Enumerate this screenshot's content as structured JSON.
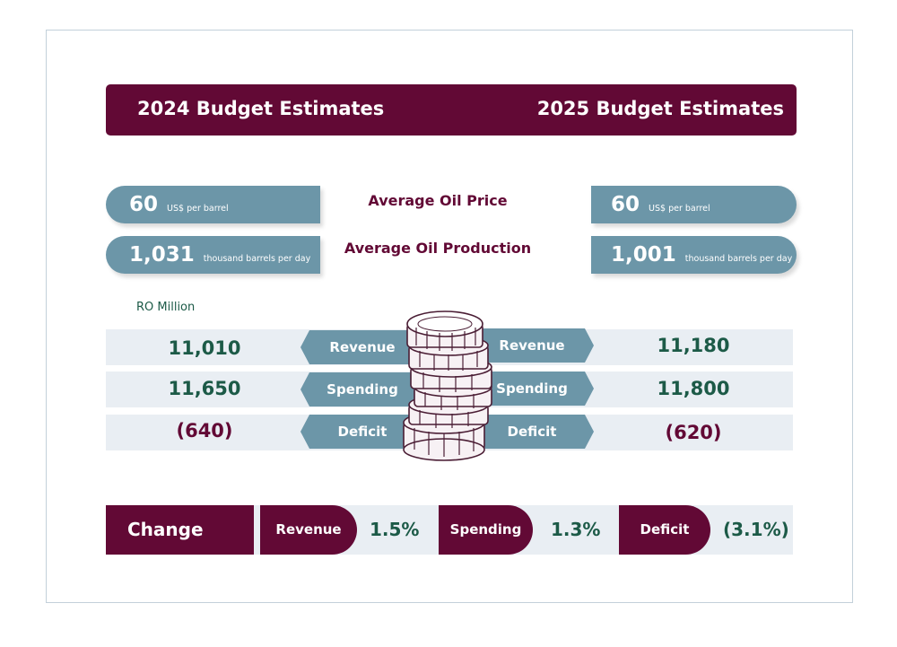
{
  "header": {
    "left_title": "2024 Budget Estimates",
    "right_title": "2025 Budget Estimates"
  },
  "oil": {
    "price_label": "Average Oil Price",
    "production_label": "Average Oil Production",
    "price_2024": "60",
    "price_2025": "60",
    "price_unit": "US$ per barrel",
    "production_2024": "1,031",
    "production_2025": "1,001",
    "production_unit": "thousand barrels per day"
  },
  "units_label": "RO Million",
  "rows": [
    {
      "label": "Revenue",
      "value_2024": "11,010",
      "value_2025": "11,180"
    },
    {
      "label": "Spending",
      "value_2024": "11,650",
      "value_2025": "11,800"
    },
    {
      "label": "Deficit",
      "value_2024": "(640)",
      "value_2025": "(620)"
    }
  ],
  "change": {
    "title": "Change",
    "items": [
      {
        "label": "Revenue",
        "value": "1.5%"
      },
      {
        "label": "Spending",
        "value": "1.3%"
      },
      {
        "label": "Deficit",
        "value": "(3.1%)"
      }
    ]
  },
  "colors": {
    "maroon": "#620935",
    "teal": "#6c96a8",
    "green": "#1c5a47",
    "row_bg": "#e9eef3"
  },
  "icons": {
    "coins": "coin-stack-icon"
  }
}
